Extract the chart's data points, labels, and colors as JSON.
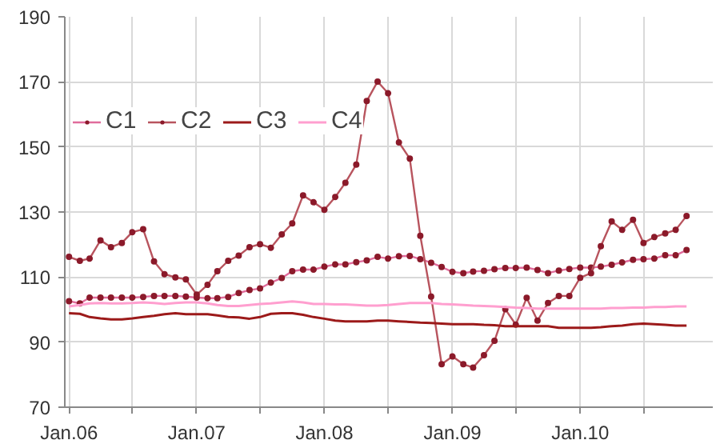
{
  "chart_data": {
    "type": "line",
    "x": [
      "2006-01",
      "2006-02",
      "2006-03",
      "2006-04",
      "2006-05",
      "2006-06",
      "2006-07",
      "2006-08",
      "2006-09",
      "2006-10",
      "2006-11",
      "2006-12",
      "2007-01",
      "2007-02",
      "2007-03",
      "2007-04",
      "2007-05",
      "2007-06",
      "2007-07",
      "2007-08",
      "2007-09",
      "2007-10",
      "2007-11",
      "2007-12",
      "2008-01",
      "2008-02",
      "2008-03",
      "2008-04",
      "2008-05",
      "2008-06",
      "2008-07",
      "2008-08",
      "2008-09",
      "2008-10",
      "2008-11",
      "2008-12",
      "2009-01",
      "2009-02",
      "2009-03",
      "2009-04",
      "2009-05",
      "2009-06",
      "2009-07",
      "2009-08",
      "2009-09",
      "2009-10",
      "2009-11",
      "2009-12",
      "2010-01",
      "2010-02",
      "2010-03",
      "2010-04",
      "2010-05",
      "2010-06",
      "2010-07",
      "2010-08",
      "2010-09",
      "2010-10",
      "2010-11"
    ],
    "series": [
      {
        "name": "C1",
        "color": "#e06c9c",
        "marker": "circle",
        "values": [
          102.6,
          101.9,
          103.7,
          103.7,
          103.7,
          103.7,
          103.7,
          103.9,
          104.2,
          104.2,
          104.2,
          104.0,
          103.7,
          103.5,
          103.5,
          103.9,
          105.1,
          106.0,
          106.5,
          108.3,
          109.7,
          111.8,
          112.3,
          112.3,
          113.2,
          113.9,
          113.9,
          114.6,
          115.1,
          116.2,
          115.7,
          116.4,
          116.5,
          115.5,
          114.4,
          113.1,
          111.6,
          111.2,
          111.7,
          111.9,
          112.4,
          112.8,
          112.8,
          112.9,
          112.2,
          111.2,
          112.0,
          112.5,
          112.9,
          112.9,
          113.2,
          113.8,
          114.5,
          115.3,
          115.5,
          115.7,
          116.7,
          116.7,
          118.3
        ]
      },
      {
        "name": "C2",
        "color": "#b8545e",
        "marker": "circle",
        "values": [
          116.2,
          115.0,
          115.7,
          121.3,
          119.2,
          120.5,
          123.8,
          124.7,
          114.8,
          110.9,
          109.9,
          109.3,
          104.6,
          107.6,
          111.8,
          115.0,
          116.6,
          119.2,
          120.1,
          119.0,
          123.1,
          126.5,
          135.1,
          133.0,
          130.7,
          134.6,
          139.0,
          144.6,
          164.1,
          170.1,
          166.5,
          151.4,
          146.4,
          122.7,
          104.0,
          83.2,
          85.6,
          83.2,
          82.2,
          86.0,
          90.4,
          100.1,
          95.4,
          103.6,
          96.6,
          102.0,
          104.2,
          104.2,
          109.8,
          111.2,
          119.5,
          127.1,
          124.5,
          127.6,
          120.5,
          122.3,
          123.4,
          124.5,
          128.8
        ]
      },
      {
        "name": "C3",
        "color": "#9c1a1a",
        "values": [
          98.9,
          98.7,
          97.7,
          97.3,
          97.0,
          97.0,
          97.3,
          97.7,
          98.1,
          98.6,
          98.9,
          98.6,
          98.6,
          98.6,
          98.2,
          97.7,
          97.6,
          97.2,
          97.7,
          98.7,
          98.9,
          98.9,
          98.4,
          97.7,
          97.2,
          96.6,
          96.4,
          96.4,
          96.4,
          96.6,
          96.6,
          96.4,
          96.2,
          96.0,
          95.9,
          95.7,
          95.5,
          95.5,
          95.5,
          95.3,
          95.2,
          94.9,
          94.9,
          94.9,
          94.9,
          94.9,
          94.4,
          94.4,
          94.4,
          94.4,
          94.6,
          94.9,
          95.1,
          95.5,
          95.7,
          95.5,
          95.3,
          95.1,
          95.1
        ]
      },
      {
        "name": "C4",
        "color": "#ff9fcf",
        "values": [
          101.0,
          101.4,
          101.9,
          102.0,
          101.9,
          101.9,
          102.0,
          102.2,
          102.0,
          101.7,
          102.0,
          102.2,
          102.2,
          101.9,
          101.4,
          101.1,
          101.1,
          101.4,
          101.7,
          101.9,
          102.2,
          102.5,
          102.2,
          101.7,
          101.7,
          101.6,
          101.6,
          101.4,
          101.2,
          101.2,
          101.4,
          101.7,
          102.0,
          102.0,
          102.0,
          101.7,
          101.6,
          101.4,
          101.2,
          101.1,
          101.0,
          100.8,
          100.6,
          100.5,
          100.3,
          100.3,
          100.3,
          100.3,
          100.3,
          100.3,
          100.3,
          100.5,
          100.5,
          100.6,
          100.6,
          100.8,
          100.8,
          101.0,
          101.0
        ]
      }
    ],
    "xlim": [
      "2005-12-20",
      "2011-01-15"
    ],
    "xticks": [
      {
        "value": "2006-01",
        "label": "Jan.06"
      },
      {
        "value": "2006-07",
        "label": null
      },
      {
        "value": "2007-01",
        "label": "Jan.07"
      },
      {
        "value": "2007-07",
        "label": null
      },
      {
        "value": "2008-01",
        "label": "Jan.08"
      },
      {
        "value": "2008-07",
        "label": null
      },
      {
        "value": "2009-01",
        "label": "Jan.09"
      },
      {
        "value": "2009-07",
        "label": null
      },
      {
        "value": "2010-01",
        "label": "Jan.10"
      },
      {
        "value": "2010-07",
        "label": null
      }
    ],
    "ylim": [
      70,
      190
    ],
    "yticks": [
      70,
      90,
      110,
      130,
      150,
      170,
      190
    ],
    "grid": true,
    "legend": "top left"
  }
}
